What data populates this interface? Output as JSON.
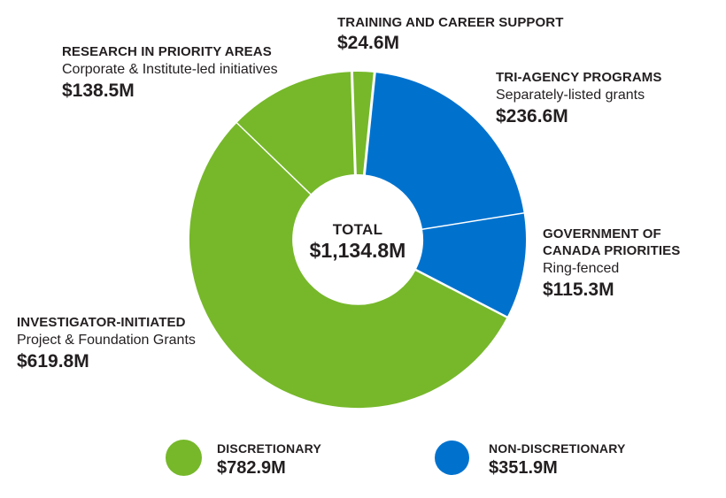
{
  "chart_data": {
    "type": "pie",
    "variant": "donut",
    "legend_position": "bottom",
    "start_angle_deg": -2,
    "total_label": "TOTAL",
    "total_value": "$1,134.8M",
    "total_value_num": 1134.8,
    "segments": [
      {
        "id": "training",
        "label": "TRAINING AND CAREER SUPPORT",
        "sublabel": "",
        "amount": "$24.6M",
        "value": 24.6,
        "color": "#76b82a",
        "group": "discretionary"
      },
      {
        "id": "tri_agency",
        "label": "TRI-AGENCY PROGRAMS",
        "sublabel": "Separately-listed grants",
        "amount": "$236.6M",
        "value": 236.6,
        "color": "#0072ce",
        "group": "non-discretionary"
      },
      {
        "id": "gov_canada",
        "label": "GOVERNMENT OF CANADA PRIORITIES",
        "sublabel": "Ring-fenced",
        "amount": "$115.3M",
        "value": 115.3,
        "color": "#0072ce",
        "group": "non-discretionary"
      },
      {
        "id": "investigator",
        "label": "INVESTIGATOR-INITIATED",
        "sublabel": "Project & Foundation Grants",
        "amount": "$619.8M",
        "value": 619.8,
        "color": "#76b82a",
        "group": "discretionary"
      },
      {
        "id": "research",
        "label": "RESEARCH IN PRIORITY AREAS",
        "sublabel": "Corporate & Institute-led initiatives",
        "amount": "$138.5M",
        "value": 138.5,
        "color": "#76b82a",
        "group": "discretionary"
      }
    ],
    "legend": [
      {
        "label": "DISCRETIONARY",
        "amount": "$782.9M",
        "value": 782.9,
        "color": "#76b82a"
      },
      {
        "label": "NON-DISCRETIONARY",
        "amount": "$351.9M",
        "value": 351.9,
        "color": "#0072ce"
      }
    ]
  },
  "colors": {
    "green": "#76b82a",
    "blue": "#0072ce",
    "text": "#231f20",
    "background": "#ffffff"
  }
}
